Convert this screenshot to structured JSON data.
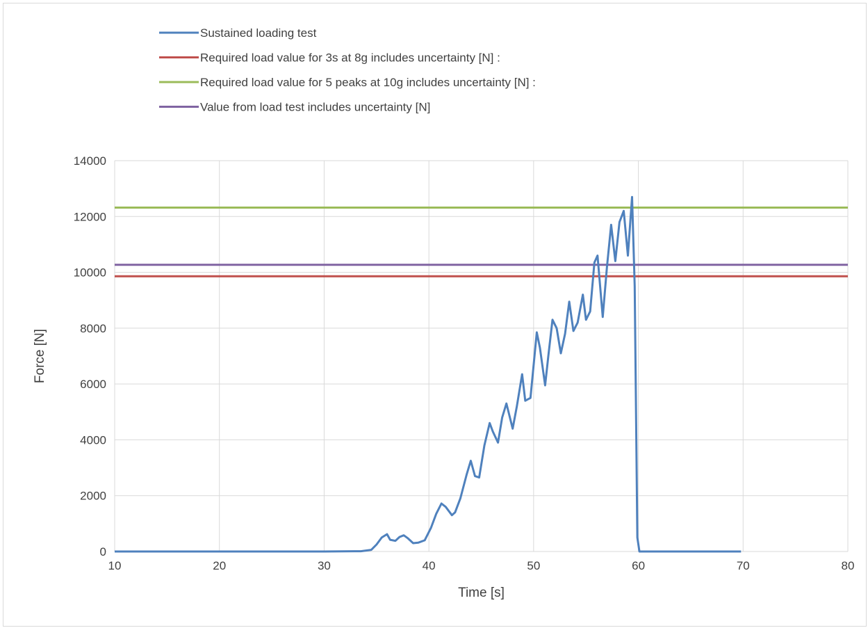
{
  "chart_data": {
    "type": "line",
    "xlabel": "Time [s]",
    "ylabel": "Force [N]",
    "xlim": [
      10,
      80
    ],
    "ylim": [
      0,
      14000
    ],
    "x_ticks": [
      10,
      20,
      30,
      40,
      50,
      60,
      70,
      80
    ],
    "y_ticks": [
      0,
      2000,
      4000,
      6000,
      8000,
      10000,
      12000,
      14000
    ],
    "grid": true,
    "legend_position": "top-left",
    "series": [
      {
        "name": "Sustained loading test",
        "color": "#4f81bd",
        "kind": "line",
        "points": [
          [
            10,
            0
          ],
          [
            15,
            0
          ],
          [
            20,
            0
          ],
          [
            25,
            0
          ],
          [
            30,
            0
          ],
          [
            33.5,
            10
          ],
          [
            34.5,
            60
          ],
          [
            35,
            250
          ],
          [
            35.5,
            500
          ],
          [
            36,
            620
          ],
          [
            36.3,
            420
          ],
          [
            36.8,
            380
          ],
          [
            37.2,
            520
          ],
          [
            37.6,
            580
          ],
          [
            38,
            470
          ],
          [
            38.5,
            300
          ],
          [
            39,
            320
          ],
          [
            39.6,
            400
          ],
          [
            40.2,
            850
          ],
          [
            40.7,
            1350
          ],
          [
            41.2,
            1720
          ],
          [
            41.6,
            1600
          ],
          [
            42.2,
            1300
          ],
          [
            42.5,
            1400
          ],
          [
            43,
            1900
          ],
          [
            43.6,
            2750
          ],
          [
            44,
            3250
          ],
          [
            44.4,
            2700
          ],
          [
            44.8,
            2650
          ],
          [
            45.3,
            3800
          ],
          [
            45.8,
            4600
          ],
          [
            46.1,
            4300
          ],
          [
            46.6,
            3900
          ],
          [
            47,
            4800
          ],
          [
            47.4,
            5300
          ],
          [
            48,
            4400
          ],
          [
            48.4,
            5200
          ],
          [
            48.9,
            6350
          ],
          [
            49.2,
            5400
          ],
          [
            49.7,
            5500
          ],
          [
            50.3,
            7850
          ],
          [
            50.6,
            7300
          ],
          [
            51.1,
            5950
          ],
          [
            51.4,
            7000
          ],
          [
            51.8,
            8300
          ],
          [
            52.2,
            8000
          ],
          [
            52.6,
            7100
          ],
          [
            53,
            7800
          ],
          [
            53.4,
            8950
          ],
          [
            53.8,
            7900
          ],
          [
            54.2,
            8200
          ],
          [
            54.7,
            9200
          ],
          [
            55,
            8300
          ],
          [
            55.4,
            8600
          ],
          [
            55.8,
            10350
          ],
          [
            56.1,
            10600
          ],
          [
            56.6,
            8400
          ],
          [
            57,
            10200
          ],
          [
            57.4,
            11700
          ],
          [
            57.8,
            10400
          ],
          [
            58.2,
            11800
          ],
          [
            58.6,
            12200
          ],
          [
            59,
            10600
          ],
          [
            59.4,
            12700
          ],
          [
            59.65,
            9500
          ],
          [
            59.9,
            500
          ],
          [
            60.1,
            0
          ],
          [
            60.5,
            0
          ],
          [
            65,
            0
          ],
          [
            69.8,
            0
          ]
        ]
      },
      {
        "name": "Required load value for 3s at 8g includes uncertainty [N] :",
        "color": "#c0504d",
        "kind": "hline",
        "y": 9860
      },
      {
        "name": "Required load value for 5 peaks at 10g includes uncertainty [N] :",
        "color": "#9bbb59",
        "kind": "hline",
        "y": 12320
      },
      {
        "name": "Value from load test includes uncertainty [N]",
        "color": "#8064a2",
        "kind": "hline",
        "y": 10270
      }
    ]
  }
}
